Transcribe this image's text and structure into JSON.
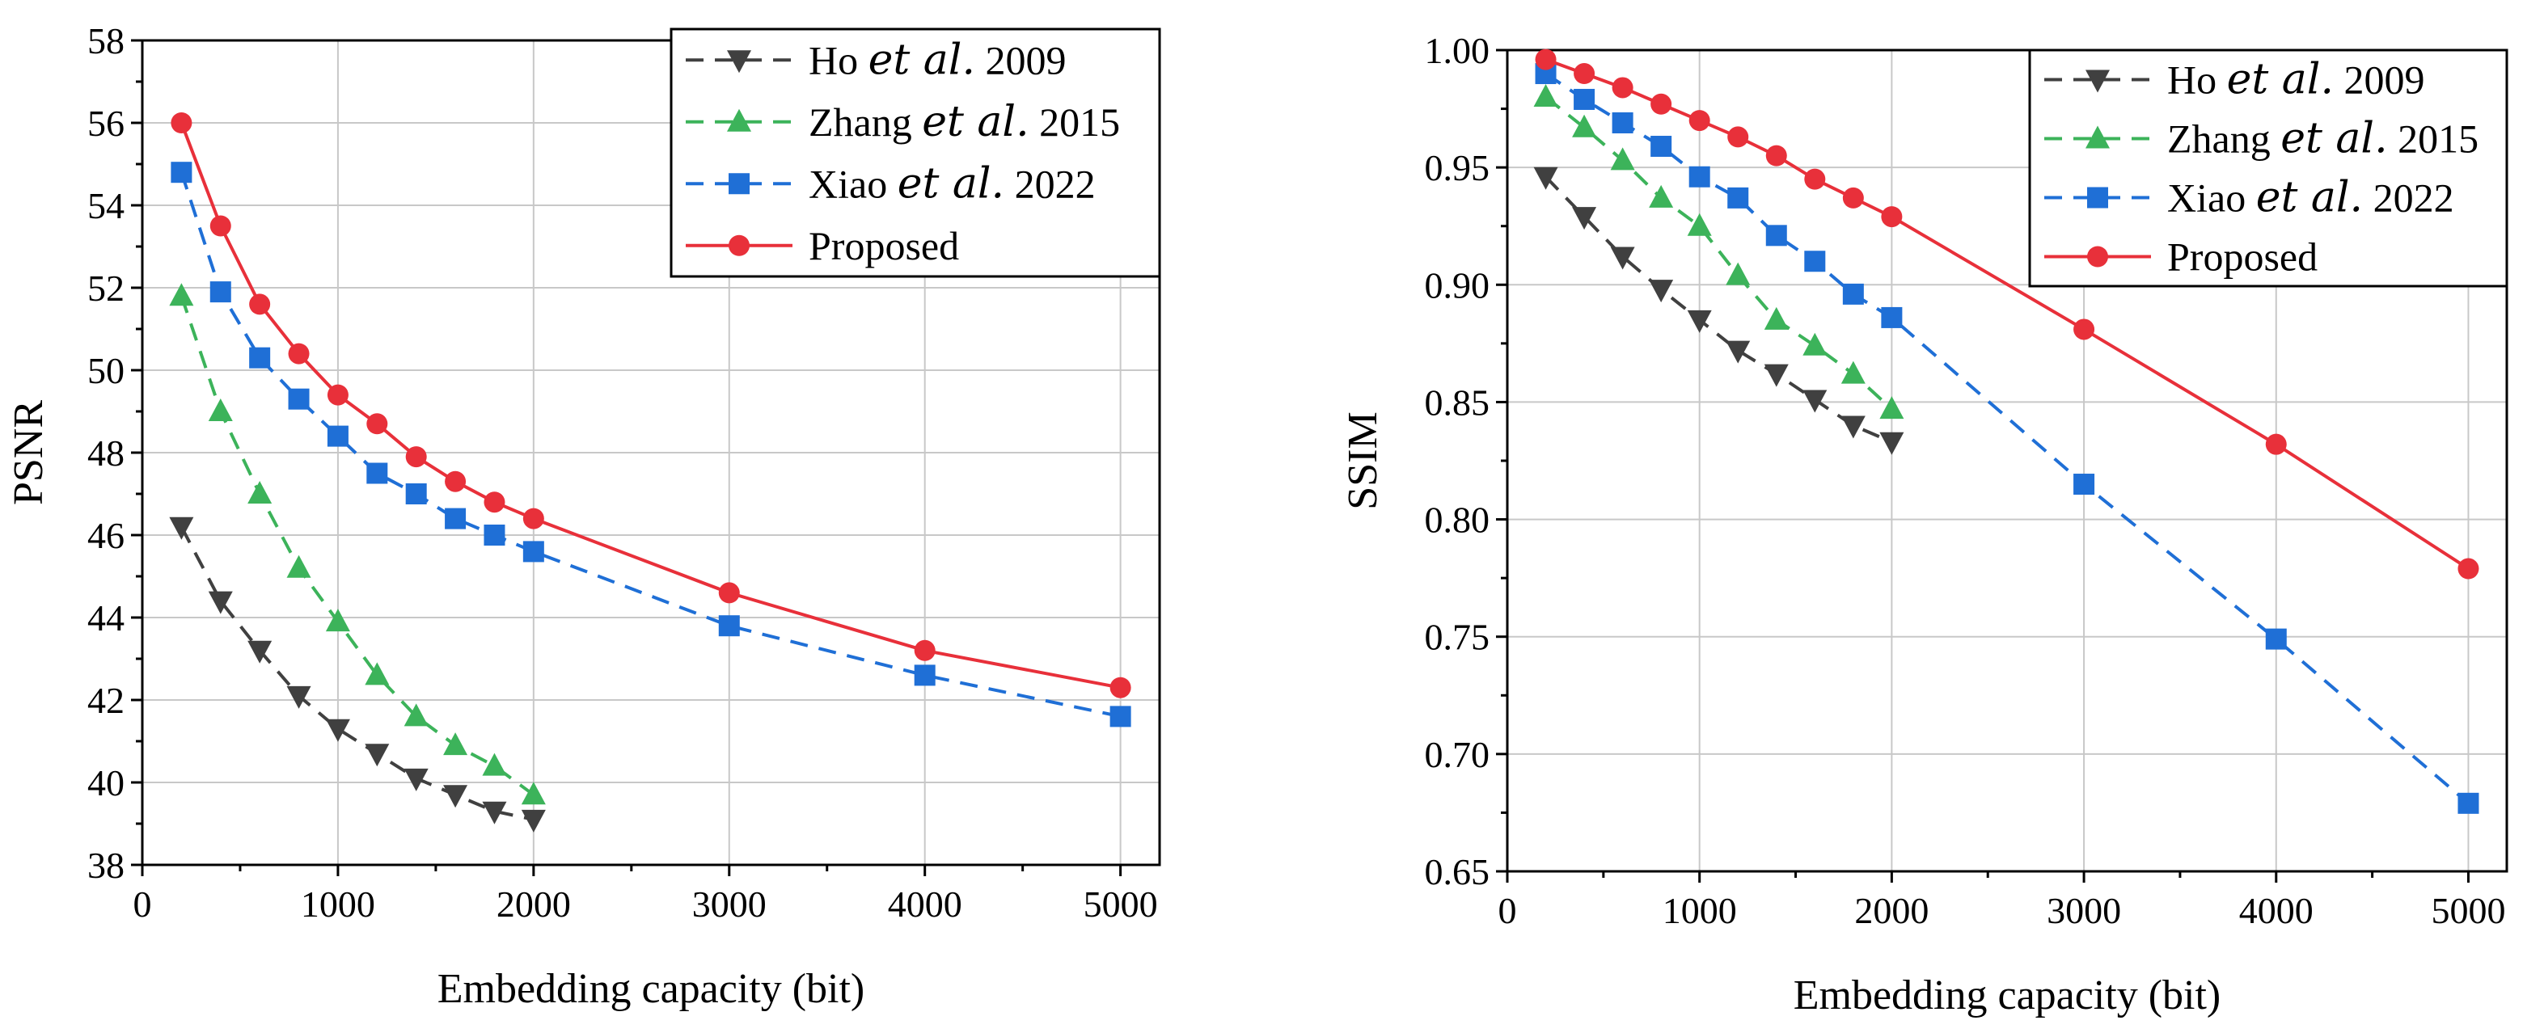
{
  "chart_data": [
    {
      "type": "line",
      "title": "",
      "xlabel": "Embedding capacity (bit)",
      "ylabel": "PSNR",
      "xlim": [
        0,
        5200
      ],
      "ylim": [
        38,
        58
      ],
      "xticks": [
        0,
        1000,
        2000,
        3000,
        4000,
        5000
      ],
      "yticks": [
        38,
        40,
        42,
        44,
        46,
        48,
        50,
        52,
        54,
        56,
        58
      ],
      "ytick_labels": [
        "38",
        "40",
        "42",
        "44",
        "46",
        "48",
        "50",
        "52",
        "54",
        "56",
        "58"
      ],
      "grid": true,
      "legend_position": "top-right",
      "series": [
        {
          "name": "Ho et al. 2009",
          "label_pre": "Ho ",
          "label_it": "et al.",
          "label_post": " 2009",
          "color": "#404040",
          "dash": "dashed",
          "marker": "triangle-down",
          "x": [
            200,
            400,
            600,
            800,
            1000,
            1200,
            1400,
            1600,
            1800,
            2000
          ],
          "y": [
            46.2,
            44.4,
            43.2,
            42.1,
            41.3,
            40.7,
            40.1,
            39.7,
            39.3,
            39.1
          ]
        },
        {
          "name": "Zhang et al. 2015",
          "label_pre": "Zhang ",
          "label_it": "et al.",
          "label_post": " 2015",
          "color": "#3cb35a",
          "dash": "dashed",
          "marker": "triangle-up",
          "x": [
            200,
            400,
            600,
            800,
            1000,
            1200,
            1400,
            1600,
            1800,
            2000
          ],
          "y": [
            51.8,
            49.0,
            47.0,
            45.2,
            43.9,
            42.6,
            41.6,
            40.9,
            40.4,
            39.7
          ]
        },
        {
          "name": "Xiao et al. 2022",
          "label_pre": "Xiao ",
          "label_it": "et al.",
          "label_post": " 2022",
          "color": "#1f6fd6",
          "dash": "dashed",
          "marker": "square",
          "x": [
            200,
            400,
            600,
            800,
            1000,
            1200,
            1400,
            1600,
            1800,
            2000,
            3000,
            4000,
            5000
          ],
          "y": [
            54.8,
            51.9,
            50.3,
            49.3,
            48.4,
            47.5,
            47.0,
            46.4,
            46.0,
            45.6,
            43.8,
            42.6,
            41.6
          ]
        },
        {
          "name": "Proposed",
          "label_pre": "Proposed",
          "label_it": "",
          "label_post": "",
          "color": "#e8303a",
          "dash": "solid",
          "marker": "circle",
          "x": [
            200,
            400,
            600,
            800,
            1000,
            1200,
            1400,
            1600,
            1800,
            2000,
            3000,
            4000,
            5000
          ],
          "y": [
            56.0,
            53.5,
            51.6,
            50.4,
            49.4,
            48.7,
            47.9,
            47.3,
            46.8,
            46.4,
            44.6,
            43.2,
            42.3
          ]
        }
      ]
    },
    {
      "type": "line",
      "title": "",
      "xlabel": "Embedding capacity (bit)",
      "ylabel": "SSIM",
      "xlim": [
        0,
        5200
      ],
      "ylim": [
        0.65,
        1.0
      ],
      "xticks": [
        0,
        1000,
        2000,
        3000,
        4000,
        5000
      ],
      "yticks": [
        0.65,
        0.7,
        0.75,
        0.8,
        0.85,
        0.9,
        0.95,
        1.0
      ],
      "ytick_labels": [
        "0.65",
        "0.70",
        "0.75",
        "0.80",
        "0.85",
        "0.90",
        "0.95",
        "1.00"
      ],
      "grid": true,
      "legend_position": "top-right",
      "series": [
        {
          "name": "Ho et al. 2009",
          "label_pre": "Ho ",
          "label_it": "et al.",
          "label_post": " 2009",
          "color": "#404040",
          "dash": "dashed",
          "marker": "triangle-down",
          "x": [
            200,
            400,
            600,
            800,
            1000,
            1200,
            1400,
            1600,
            1800,
            2000
          ],
          "y": [
            0.946,
            0.929,
            0.912,
            0.898,
            0.885,
            0.872,
            0.862,
            0.851,
            0.84,
            0.833
          ]
        },
        {
          "name": "Zhang et al. 2015",
          "label_pre": "Zhang ",
          "label_it": "et al.",
          "label_post": " 2015",
          "color": "#3cb35a",
          "dash": "dashed",
          "marker": "triangle-up",
          "x": [
            200,
            400,
            600,
            800,
            1000,
            1200,
            1400,
            1600,
            1800,
            2000
          ],
          "y": [
            0.98,
            0.967,
            0.953,
            0.937,
            0.925,
            0.904,
            0.885,
            0.874,
            0.862,
            0.847
          ]
        },
        {
          "name": "Xiao et al. 2022",
          "label_pre": "Xiao ",
          "label_it": "et al.",
          "label_post": " 2022",
          "color": "#1f6fd6",
          "dash": "dashed",
          "marker": "square",
          "x": [
            200,
            400,
            600,
            800,
            1000,
            1200,
            1400,
            1600,
            1800,
            2000,
            3000,
            4000,
            5000
          ],
          "y": [
            0.99,
            0.979,
            0.969,
            0.959,
            0.946,
            0.937,
            0.921,
            0.91,
            0.896,
            0.886,
            0.815,
            0.749,
            0.679
          ]
        },
        {
          "name": "Proposed",
          "label_pre": "Proposed",
          "label_it": "",
          "label_post": "",
          "color": "#e8303a",
          "dash": "solid",
          "marker": "circle",
          "x": [
            200,
            400,
            600,
            800,
            1000,
            1200,
            1400,
            1600,
            1800,
            2000,
            3000,
            4000,
            5000
          ],
          "y": [
            0.996,
            0.99,
            0.984,
            0.977,
            0.97,
            0.963,
            0.955,
            0.945,
            0.937,
            0.929,
            0.881,
            0.832,
            0.779
          ]
        }
      ]
    }
  ]
}
